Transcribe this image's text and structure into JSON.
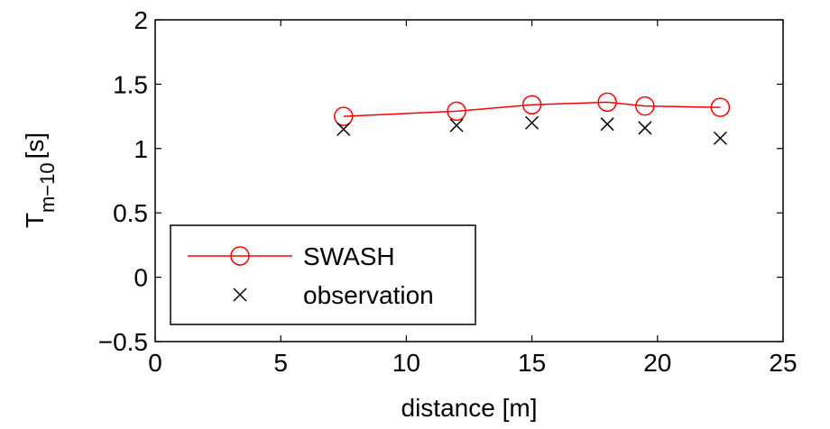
{
  "chart_data": {
    "type": "line",
    "title": "",
    "xlabel": "distance [m]",
    "ylabel": {
      "main": "T",
      "subscript": "m−10",
      "unit": "[s]"
    },
    "xlim": [
      0,
      25
    ],
    "ylim": [
      -0.5,
      2
    ],
    "xticks": [
      0,
      5,
      10,
      15,
      20,
      25
    ],
    "xtick_labels": [
      "0",
      "5",
      "10",
      "15",
      "20",
      "25"
    ],
    "yticks": [
      -0.5,
      0,
      0.5,
      1,
      1.5,
      2
    ],
    "ytick_labels": [
      "−0.5",
      "0",
      "0.5",
      "1",
      "1.5",
      "2"
    ],
    "grid": false,
    "legend_position": "bottom-left",
    "series": [
      {
        "name": "SWASH",
        "style": "line-circle",
        "color": "#ff0000",
        "x": [
          7.5,
          12,
          15,
          18,
          19.5,
          22.5
        ],
        "y": [
          1.25,
          1.29,
          1.34,
          1.36,
          1.33,
          1.32
        ]
      },
      {
        "name": "observation",
        "style": "cross",
        "color": "#000000",
        "x": [
          7.5,
          12,
          15,
          18,
          19.5,
          22.5
        ],
        "y": [
          1.15,
          1.18,
          1.2,
          1.19,
          1.16,
          1.08
        ]
      }
    ]
  }
}
